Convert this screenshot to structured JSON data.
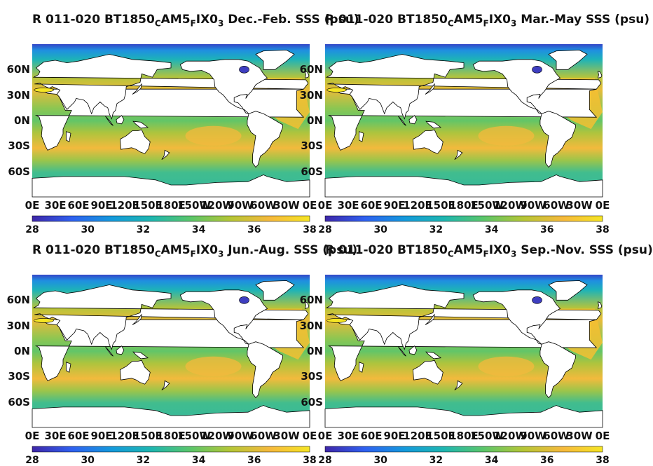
{
  "chart_data": [
    {
      "type": "heatmap",
      "title": "R 011-020 BT1850 C AM5 F IX0 3 Dec.-Feb. SSS (psu)",
      "title_parts": [
        "R 011-020 BT1850",
        "C",
        "AM5",
        "F",
        "IX0",
        "3",
        " Dec.-Feb. SSS (psu)"
      ],
      "x_ticks": [
        "0E",
        "30E",
        "60E",
        "90E",
        "120E",
        "150E",
        "180E",
        "150W",
        "120W",
        "90W",
        "60W",
        "30W",
        "0E"
      ],
      "y_ticks": [
        "60N",
        "30N",
        "0N",
        "30S",
        "60S"
      ],
      "colorbar_ticks": [
        "28",
        "30",
        "32",
        "34",
        "36",
        "38"
      ],
      "clim": [
        28,
        38
      ]
    },
    {
      "type": "heatmap",
      "title": "R 011-020 BT1850 C AM5 F IX0 3 Mar.-May SSS (psu)",
      "title_parts": [
        "R 011-020 BT1850",
        "C",
        "AM5",
        "F",
        "IX0",
        "3",
        " Mar.-May SSS (psu)"
      ],
      "x_ticks": [
        "0E",
        "30E",
        "60E",
        "90E",
        "120E",
        "150E",
        "180E",
        "150W",
        "120W",
        "90W",
        "60W",
        "30W",
        "0E"
      ],
      "y_ticks": [
        "60N",
        "30N",
        "0N",
        "30S",
        "60S"
      ],
      "colorbar_ticks": [
        "28",
        "30",
        "32",
        "34",
        "36",
        "38"
      ],
      "clim": [
        28,
        38
      ]
    },
    {
      "type": "heatmap",
      "title": "R 011-020 BT1850 C AM5 F IX0 3 Jun.-Aug. SSS (psu)",
      "title_parts": [
        "R 011-020 BT1850",
        "C",
        "AM5",
        "F",
        "IX0",
        "3",
        " Jun.-Aug. SSS (psu)"
      ],
      "x_ticks": [
        "0E",
        "30E",
        "60E",
        "90E",
        "120E",
        "150E",
        "180E",
        "150W",
        "120W",
        "90W",
        "60W",
        "30W",
        "0E"
      ],
      "y_ticks": [
        "60N",
        "30N",
        "0N",
        "30S",
        "60S"
      ],
      "colorbar_ticks": [
        "28",
        "30",
        "32",
        "34",
        "36",
        "38"
      ],
      "clim": [
        28,
        38
      ]
    },
    {
      "type": "heatmap",
      "title": "R 011-020 BT1850 C AM5 F IX0 3 Sep.-Nov. SSS (psu)",
      "title_parts": [
        "R 011-020 BT1850",
        "C",
        "AM5",
        "F",
        "IX0",
        "3",
        " Sep.-Nov. SSS (psu)"
      ],
      "x_ticks": [
        "0E",
        "30E",
        "60E",
        "90E",
        "120E",
        "150E",
        "180E",
        "150W",
        "120W",
        "90W",
        "60W",
        "30W",
        "0E"
      ],
      "y_ticks": [
        "60N",
        "30N",
        "0N",
        "30S",
        "60S"
      ],
      "colorbar_ticks": [
        "28",
        "30",
        "32",
        "34",
        "36",
        "38"
      ],
      "clim": [
        28,
        38
      ]
    }
  ],
  "colormap": [
    "#3e26a8",
    "#2f60f0",
    "#1499dc",
    "#1eb6b0",
    "#5bc66a",
    "#b5c636",
    "#f6b93c",
    "#f5e524"
  ]
}
